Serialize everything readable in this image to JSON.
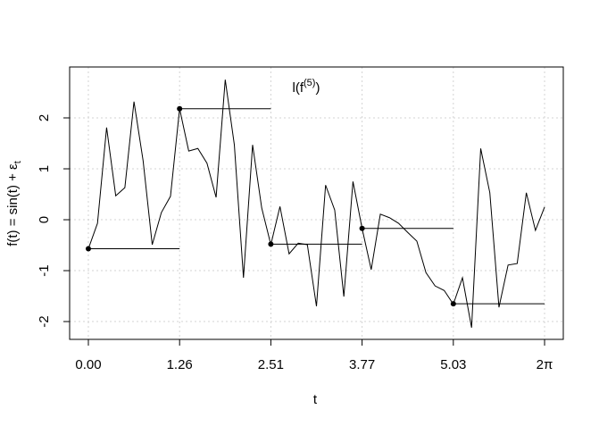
{
  "chart_data": {
    "type": "line",
    "title": "l(f",
    "title_sup": "(5)",
    "title_end": ")",
    "xlabel": "t",
    "ylabel": "f(t) = sin(t) + ε",
    "ylabel_sub": "t",
    "x": [
      0,
      0.1257,
      0.2513,
      0.377,
      0.5027,
      0.6283,
      0.754,
      0.8796,
      1.0053,
      1.131,
      1.2566,
      1.3823,
      1.508,
      1.6336,
      1.7593,
      1.885,
      2.0106,
      2.1363,
      2.2619,
      2.3876,
      2.5133,
      2.6389,
      2.7646,
      2.8903,
      3.0159,
      3.1416,
      3.2673,
      3.3929,
      3.5186,
      3.6442,
      3.7699,
      3.8956,
      4.0212,
      4.1469,
      4.2726,
      4.3982,
      4.5239,
      4.6496,
      4.7752,
      4.9009,
      5.0265,
      5.1522,
      5.2779,
      5.4035,
      5.5292,
      5.6549,
      5.7805,
      5.9062,
      6.0319,
      6.1575,
      6.2832
    ],
    "series": [
      {
        "color": "#000000",
        "values": [
          -0.57,
          -0.07,
          1.81,
          0.47,
          0.63,
          2.32,
          1.16,
          -0.49,
          0.14,
          0.46,
          2.18,
          1.35,
          1.4,
          1.11,
          0.44,
          2.75,
          1.47,
          -1.14,
          1.47,
          0.23,
          -0.49,
          0.26,
          -0.67,
          -0.46,
          -0.49,
          -1.7,
          0.68,
          0.19,
          -1.51,
          0.75,
          -0.17,
          -0.98,
          0.11,
          0.04,
          -0.07,
          -0.25,
          -0.42,
          -1.04,
          -1.3,
          -1.39,
          -1.66,
          -1.14,
          -2.12,
          1.4,
          0.53,
          -1.72,
          -0.89,
          -0.86,
          0.53,
          -0.21,
          0.25
        ]
      }
    ],
    "steps": {
      "knots": [
        0,
        1.2566,
        2.5133,
        3.7699,
        5.0265,
        6.2832
      ],
      "values": [
        -0.57,
        2.18,
        -0.48,
        -0.17,
        -1.65
      ],
      "color": "#000000"
    },
    "xlim": [
      -0.258,
      6.541
    ],
    "ylim": [
      -2.35,
      3.0
    ],
    "xticks": [
      {
        "value": 0,
        "label": "0.00"
      },
      {
        "value": 1.2566,
        "label": "1.26"
      },
      {
        "value": 2.5133,
        "label": "2.51"
      },
      {
        "value": 3.7699,
        "label": "3.77"
      },
      {
        "value": 5.0265,
        "label": "5.03"
      },
      {
        "value": 6.2832,
        "label": "2π"
      }
    ],
    "yticks": [
      -2,
      -1,
      0,
      1,
      2
    ],
    "grid": true
  }
}
